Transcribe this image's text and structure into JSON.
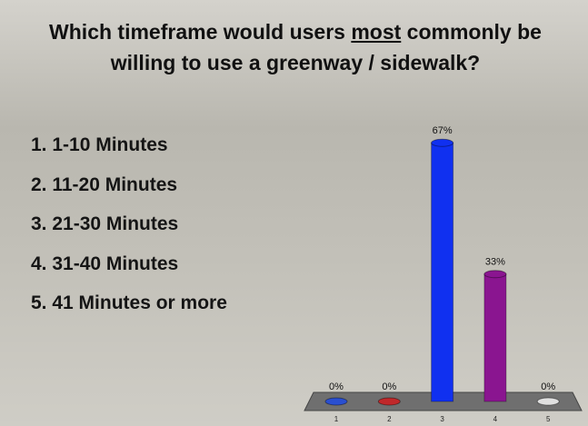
{
  "chart_data": {
    "type": "bar",
    "title_parts": [
      "Which timeframe would users ",
      "most",
      " commonly be willing to use a greenway / sidewalk?"
    ],
    "options": [
      "1.  1-10 Minutes",
      "2.  11-20 Minutes",
      "3.  21-30 Minutes",
      "4.  31-40 Minutes",
      "5.  41 Minutes or more"
    ],
    "categories": [
      "1",
      "2",
      "3",
      "4",
      "5"
    ],
    "values": [
      0,
      0,
      67,
      33,
      0
    ],
    "value_labels": [
      "0%",
      "0%",
      "67%",
      "33%",
      "0%"
    ],
    "colors": [
      "#2a4fd0",
      "#c0282a",
      "#1030f0",
      "#8a1590",
      "#e0e0e0"
    ]
  }
}
